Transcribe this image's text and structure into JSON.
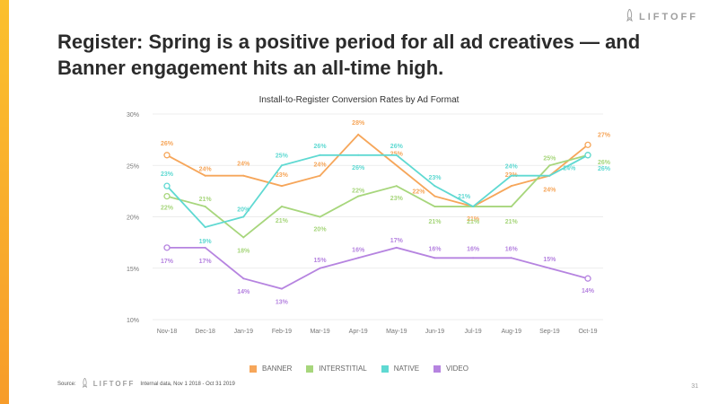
{
  "brand": {
    "name": "LIFTOFF",
    "icon": "rocket-icon"
  },
  "slide": {
    "title_line1": "Register: Spring is a positive period for all ad creatives — and",
    "title_line2": "Banner engagement hits an all-time high.",
    "page_number": "31"
  },
  "footer": {
    "source_label": "Source:",
    "logo": "LIFTOFF",
    "note": "Internal data, Nov 1 2018 - Oct 31 2019"
  },
  "colors": {
    "accent": "#f9a825",
    "banner": "#f6a65a",
    "interstitial": "#a7d67c",
    "native": "#5fd9d2",
    "video": "#b684e0",
    "grid": "#e6e6e6"
  },
  "chart_data": {
    "type": "line",
    "title": "Install-to-Register Conversion Rates by Ad Format",
    "xlabel": "",
    "ylabel": "",
    "ylim": [
      10,
      30
    ],
    "y_ticks": [
      10,
      15,
      20,
      25,
      30
    ],
    "y_tick_labels": [
      "10%",
      "15%",
      "20%",
      "25%",
      "30%"
    ],
    "categories": [
      "Nov-18",
      "Dec-18",
      "Jan-19",
      "Feb-19",
      "Mar-19",
      "Apr-19",
      "May-19",
      "Jun-19",
      "Jul-19",
      "Aug-19",
      "Sep-19",
      "Oct-19"
    ],
    "grid": true,
    "legend_position": "bottom",
    "series": [
      {
        "name": "BANNER",
        "values": [
          26,
          24,
          24,
          23,
          24,
          28,
          25,
          22,
          21,
          23,
          24,
          27
        ],
        "labels": [
          "26%",
          "24%",
          "24%",
          "23%",
          "24%",
          "28%",
          "25%",
          "22%",
          "21%",
          "23%",
          "24%",
          "27%"
        ]
      },
      {
        "name": "INTERSTITIAL",
        "values": [
          22,
          21,
          18,
          21,
          20,
          22,
          23,
          21,
          21,
          21,
          25,
          26
        ],
        "labels": [
          "22%",
          "21%",
          "18%",
          "21%",
          "20%",
          "22%",
          "23%",
          "21%",
          "21%",
          "21%",
          "25%",
          "26%"
        ]
      },
      {
        "name": "NATIVE",
        "values": [
          23,
          19,
          20,
          25,
          26,
          26,
          26,
          23,
          21,
          24,
          24,
          26
        ],
        "labels": [
          "23%",
          "19%",
          "20%",
          "25%",
          "26%",
          "26%",
          "26%",
          "23%",
          "21%",
          "24%",
          "24%",
          "26%"
        ]
      },
      {
        "name": "VIDEO",
        "values": [
          17,
          17,
          14,
          13,
          15,
          16,
          17,
          16,
          16,
          16,
          15,
          14
        ],
        "labels": [
          "17%",
          "17%",
          "14%",
          "13%",
          "15%",
          "16%",
          "17%",
          "16%",
          "16%",
          "16%",
          "15%",
          "14%"
        ]
      }
    ]
  }
}
